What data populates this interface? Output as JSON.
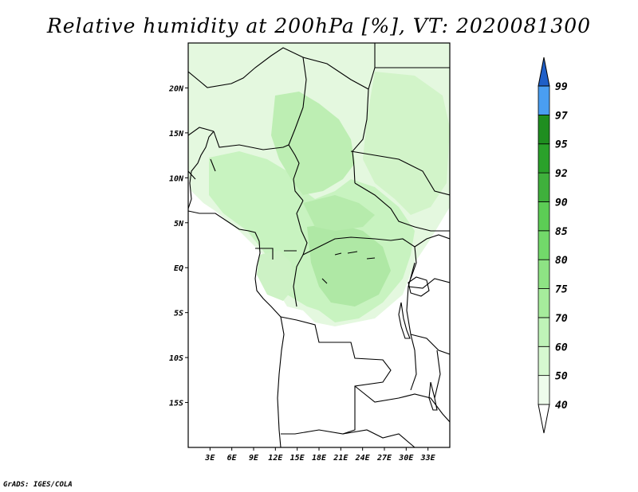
{
  "title": "Relative humidity at 200hPa [%], VT: 2020081300",
  "credit": "GrADS: IGES/COLA",
  "map": {
    "lon_range": [
      0,
      36
    ],
    "lat_range": [
      -20,
      25
    ],
    "lat_ticks": [
      {
        "v": 20,
        "label": "20N"
      },
      {
        "v": 15,
        "label": "15N"
      },
      {
        "v": 10,
        "label": "10N"
      },
      {
        "v": 5,
        "label": "5N"
      },
      {
        "v": 0,
        "label": "EQ"
      },
      {
        "v": -5,
        "label": "5S"
      },
      {
        "v": -10,
        "label": "10S"
      },
      {
        "v": -15,
        "label": "15S"
      }
    ],
    "lon_ticks": [
      {
        "v": 3,
        "label": "3E"
      },
      {
        "v": 6,
        "label": "6E"
      },
      {
        "v": 9,
        "label": "9E"
      },
      {
        "v": 12,
        "label": "12E"
      },
      {
        "v": 15,
        "label": "15E"
      },
      {
        "v": 18,
        "label": "18E"
      },
      {
        "v": 21,
        "label": "21E"
      },
      {
        "v": 24,
        "label": "24E"
      },
      {
        "v": 27,
        "label": "27E"
      },
      {
        "v": 30,
        "label": "30E"
      },
      {
        "v": 33,
        "label": "33E"
      }
    ]
  },
  "colorbar": {
    "levels": [
      "40",
      "50",
      "60",
      "70",
      "75",
      "80",
      "85",
      "90",
      "92",
      "95",
      "97",
      "99"
    ],
    "colors": [
      "#eefcec",
      "#d6f8d0",
      "#bff3b8",
      "#a6ec9c",
      "#8ee384",
      "#72d96a",
      "#5ccd55",
      "#3fb03c",
      "#2aa12a",
      "#1f8e20",
      "#4a9ef2",
      "#2e7ee0",
      "#1f5fc8"
    ]
  }
}
